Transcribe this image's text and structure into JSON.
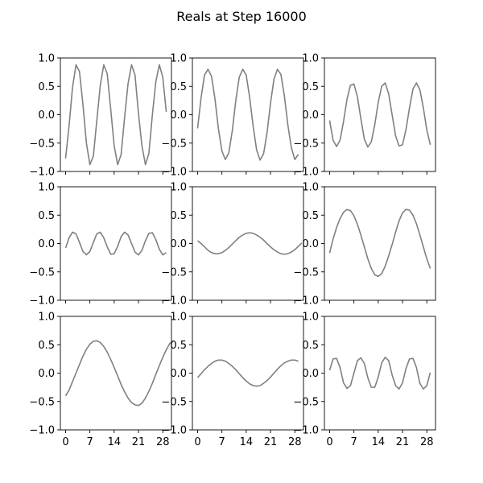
{
  "chart_data": {
    "type": "line",
    "title": "Reals at Step 16000",
    "layout": "3x3 grid of subplots",
    "ylim": [
      -1.0,
      1.0
    ],
    "yticks": [
      -1.0,
      -0.5,
      0.0,
      0.5,
      1.0
    ],
    "ytick_labels": [
      "−1.0",
      "−0.5",
      "0.0",
      "0.5",
      "1.0"
    ],
    "xlim": [
      -1.5,
      30.5
    ],
    "xticks": [
      0,
      7,
      14,
      21,
      28
    ],
    "xtick_labels": [
      "0",
      "7",
      "14",
      "21",
      "28"
    ],
    "line_color": "#808080",
    "subplots": [
      {
        "values": [
          -0.77,
          -0.2,
          0.48,
          0.88,
          0.76,
          0.18,
          -0.5,
          -0.88,
          -0.73,
          -0.1,
          0.52,
          0.88,
          0.72,
          0.1,
          -0.55,
          -0.88,
          -0.7,
          -0.05,
          0.55,
          0.88,
          0.7,
          0.02,
          -0.55,
          -0.88,
          -0.68,
          0.0,
          0.58,
          0.88,
          0.66,
          0.05
        ]
      },
      {
        "values": [
          -0.24,
          0.3,
          0.7,
          0.8,
          0.68,
          0.28,
          -0.25,
          -0.64,
          -0.79,
          -0.67,
          -0.28,
          0.25,
          0.66,
          0.8,
          0.7,
          0.3,
          -0.2,
          -0.62,
          -0.8,
          -0.69,
          -0.32,
          0.2,
          0.63,
          0.8,
          0.71,
          0.33,
          -0.18,
          -0.58,
          -0.79,
          -0.7
        ]
      },
      {
        "values": [
          -0.1,
          -0.45,
          -0.56,
          -0.45,
          -0.12,
          0.27,
          0.52,
          0.54,
          0.32,
          -0.07,
          -0.43,
          -0.57,
          -0.48,
          -0.18,
          0.22,
          0.5,
          0.56,
          0.37,
          0.0,
          -0.37,
          -0.55,
          -0.53,
          -0.26,
          0.12,
          0.45,
          0.56,
          0.44,
          0.12,
          -0.27,
          -0.53
        ]
      },
      {
        "values": [
          -0.08,
          0.1,
          0.2,
          0.17,
          0.02,
          -0.14,
          -0.2,
          -0.14,
          0.02,
          0.17,
          0.2,
          0.1,
          -0.06,
          -0.19,
          -0.18,
          -0.05,
          0.12,
          0.2,
          0.15,
          0.0,
          -0.15,
          -0.2,
          -0.12,
          0.05,
          0.18,
          0.19,
          0.07,
          -0.1,
          -0.2,
          -0.16
        ]
      },
      {
        "values": [
          0.05,
          0.0,
          -0.06,
          -0.12,
          -0.16,
          -0.18,
          -0.18,
          -0.16,
          -0.12,
          -0.07,
          -0.01,
          0.05,
          0.11,
          0.15,
          0.18,
          0.19,
          0.18,
          0.15,
          0.11,
          0.06,
          0.0,
          -0.06,
          -0.11,
          -0.15,
          -0.18,
          -0.19,
          -0.18,
          -0.15,
          -0.11,
          -0.05,
          0.01
        ]
      },
      {
        "values": [
          -0.17,
          0.08,
          0.28,
          0.44,
          0.55,
          0.6,
          0.58,
          0.49,
          0.34,
          0.15,
          -0.06,
          -0.27,
          -0.44,
          -0.55,
          -0.58,
          -0.53,
          -0.4,
          -0.22,
          -0.02,
          0.2,
          0.4,
          0.54,
          0.6,
          0.59,
          0.5,
          0.35,
          0.15,
          -0.06,
          -0.27,
          -0.44
        ]
      },
      {
        "values": [
          -0.4,
          -0.3,
          -0.15,
          0.0,
          0.15,
          0.3,
          0.42,
          0.51,
          0.56,
          0.57,
          0.54,
          0.47,
          0.37,
          0.24,
          0.1,
          -0.05,
          -0.2,
          -0.33,
          -0.44,
          -0.52,
          -0.56,
          -0.57,
          -0.53,
          -0.44,
          -0.32,
          -0.18,
          -0.02,
          0.13,
          0.28,
          0.41,
          0.52,
          0.56
        ]
      },
      {
        "values": [
          -0.08,
          -0.01,
          0.06,
          0.12,
          0.17,
          0.21,
          0.23,
          0.23,
          0.21,
          0.17,
          0.12,
          0.06,
          -0.01,
          -0.08,
          -0.14,
          -0.19,
          -0.22,
          -0.23,
          -0.22,
          -0.18,
          -0.13,
          -0.07,
          0.0,
          0.07,
          0.13,
          0.18,
          0.21,
          0.23,
          0.23,
          0.21
        ]
      },
      {
        "values": [
          0.05,
          0.25,
          0.26,
          0.1,
          -0.17,
          -0.27,
          -0.22,
          0.0,
          0.22,
          0.27,
          0.17,
          -0.08,
          -0.25,
          -0.25,
          -0.07,
          0.18,
          0.28,
          0.22,
          -0.03,
          -0.22,
          -0.28,
          -0.17,
          0.08,
          0.25,
          0.26,
          0.1,
          -0.18,
          -0.28,
          -0.22,
          0.01
        ]
      }
    ]
  }
}
